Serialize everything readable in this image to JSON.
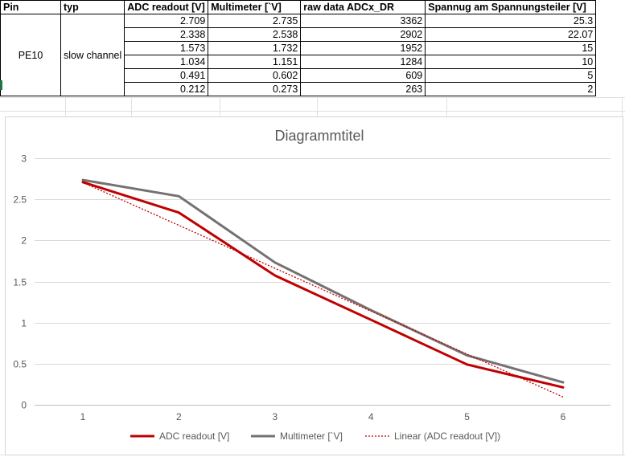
{
  "table": {
    "headers": [
      "Pin",
      "typ",
      "ADC readout [V]",
      "Multimeter [`V]",
      "raw data ADCx_DR",
      "Spannug am Spannungsteiler [V]"
    ],
    "pin": "PE10",
    "typ": "slow channel",
    "rows": [
      [
        "2.709",
        "2.735",
        "3362",
        "25.3"
      ],
      [
        "2.338",
        "2.538",
        "2902",
        "22.07"
      ],
      [
        "1.573",
        "1.732",
        "1952",
        "15"
      ],
      [
        "1.034",
        "1.151",
        "1284",
        "10"
      ],
      [
        "0.491",
        "0.602",
        "609",
        "5"
      ],
      [
        "0.212",
        "0.273",
        "263",
        "2"
      ]
    ]
  },
  "chart_data": {
    "type": "line",
    "title": "Diagrammtitel",
    "x": [
      1,
      2,
      3,
      4,
      5,
      6
    ],
    "xticks": [
      "1",
      "2",
      "3",
      "4",
      "5",
      "6"
    ],
    "yticks": [
      "0",
      "0.5",
      "1",
      "1.5",
      "2",
      "2.5",
      "3"
    ],
    "ylim": [
      0,
      3
    ],
    "grid": true,
    "legend_position": "bottom",
    "series": [
      {
        "name": "ADC readout [V]",
        "values": [
          2.709,
          2.338,
          1.573,
          1.034,
          0.491,
          0.212
        ],
        "color": "#c00000",
        "style": "solid"
      },
      {
        "name": "Multimeter [`V]",
        "values": [
          2.735,
          2.538,
          1.732,
          1.151,
          0.602,
          0.273
        ],
        "color": "#767171",
        "style": "solid"
      },
      {
        "name": "Linear (ADC readout [V])",
        "values": [
          2.705,
          2.183,
          1.661,
          1.139,
          0.617,
          0.095
        ],
        "color": "#c00000",
        "style": "dotted"
      }
    ]
  }
}
